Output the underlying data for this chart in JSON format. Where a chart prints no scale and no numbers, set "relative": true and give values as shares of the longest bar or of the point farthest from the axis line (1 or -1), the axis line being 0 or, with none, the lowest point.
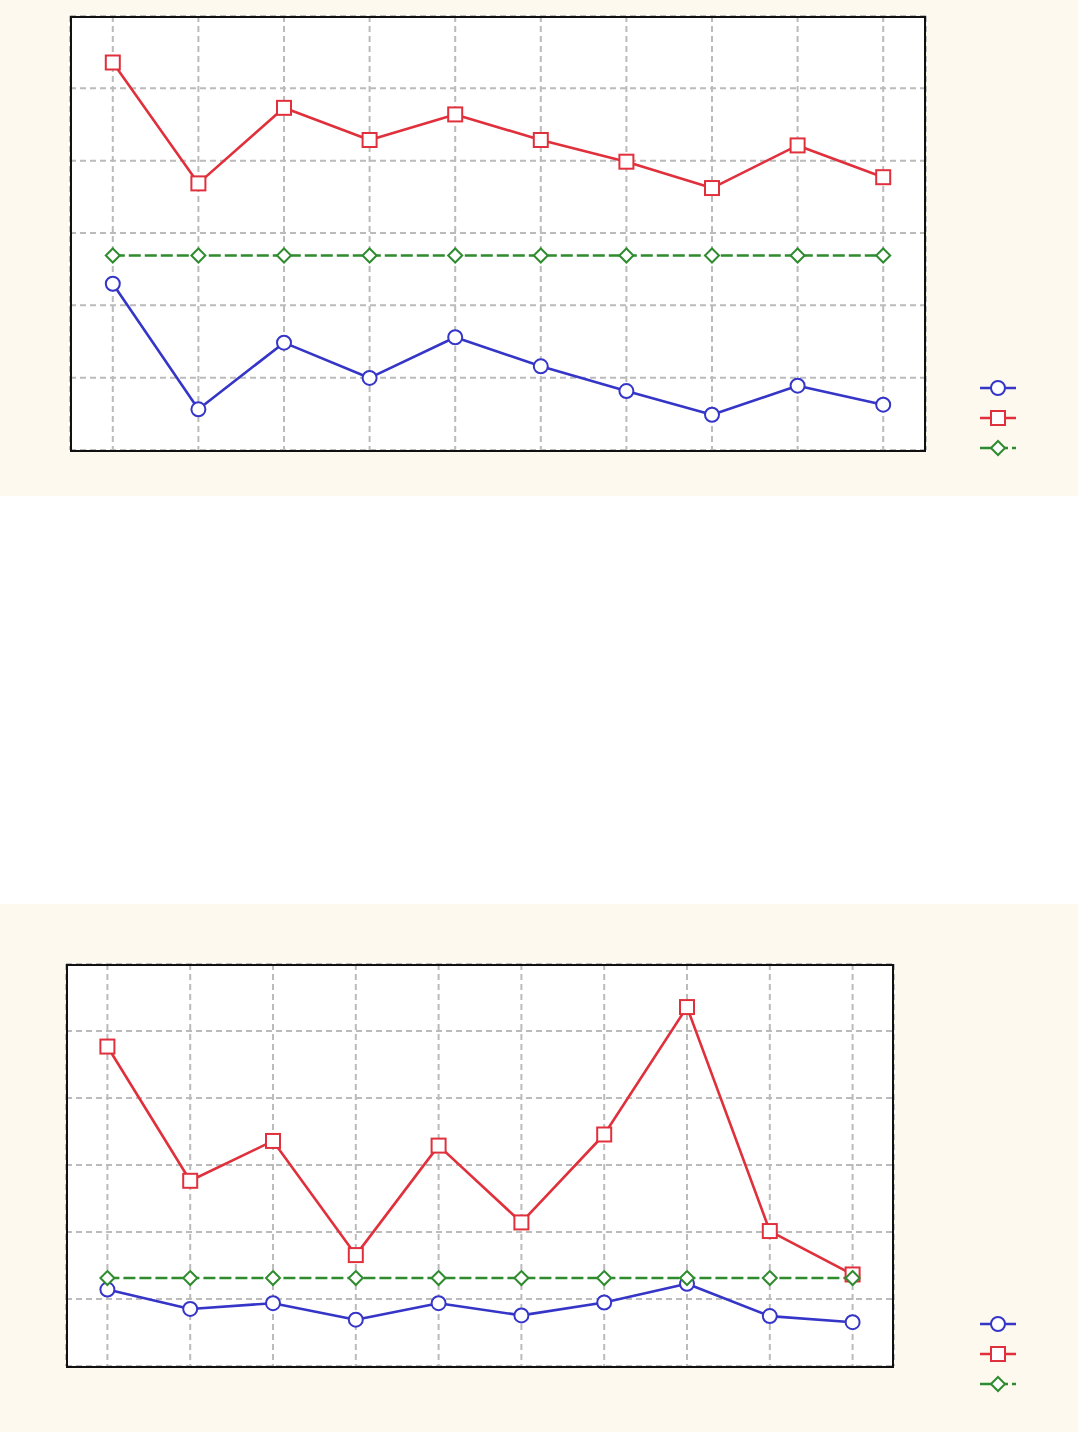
{
  "chart_data": [
    {
      "type": "line",
      "relative": true,
      "categories": [
        null,
        null,
        null,
        null,
        null,
        null,
        null,
        null,
        null,
        null
      ],
      "grid": true,
      "series": [
        {
          "color": "#3535c8",
          "marker": "circle",
          "values": [
            0.429,
            0.105,
            0.277,
            0.186,
            0.291,
            0.216,
            0.152,
            0.091,
            0.166,
            0.117
          ]
        },
        {
          "color": "#e0303c",
          "marker": "square",
          "values": [
            1,
            0.688,
            0.883,
            0.8,
            0.866,
            0.8,
            0.744,
            0.676,
            0.786,
            0.704
          ]
        },
        {
          "color": "#2e8b2e",
          "marker": "diamond",
          "line_style": "dashed",
          "values": [
            0.502,
            0.502,
            0.502,
            0.502,
            0.502,
            0.502,
            0.502,
            0.502,
            0.502,
            0.502
          ]
        }
      ]
    },
    {
      "type": "line",
      "relative": true,
      "categories": [
        null,
        null,
        null,
        null,
        null,
        null,
        null,
        null,
        null,
        null
      ],
      "grid": true,
      "series": [
        {
          "color": "#3535c8",
          "marker": "circle",
          "values": [
            0.213,
            0.159,
            0.175,
            0.129,
            0.175,
            0.141,
            0.177,
            0.229,
            0.139,
            0.122
          ]
        },
        {
          "color": "#e0303c",
          "marker": "square",
          "values": [
            0.89,
            0.516,
            0.627,
            0.309,
            0.614,
            0.4,
            0.645,
            1,
            0.376,
            0.255
          ]
        },
        {
          "color": "#2e8b2e",
          "marker": "diamond",
          "line_style": "dashed",
          "values": [
            0.245,
            0.245,
            0.245,
            0.245,
            0.245,
            0.245,
            0.245,
            0.245,
            0.245,
            0.245
          ]
        }
      ]
    }
  ]
}
